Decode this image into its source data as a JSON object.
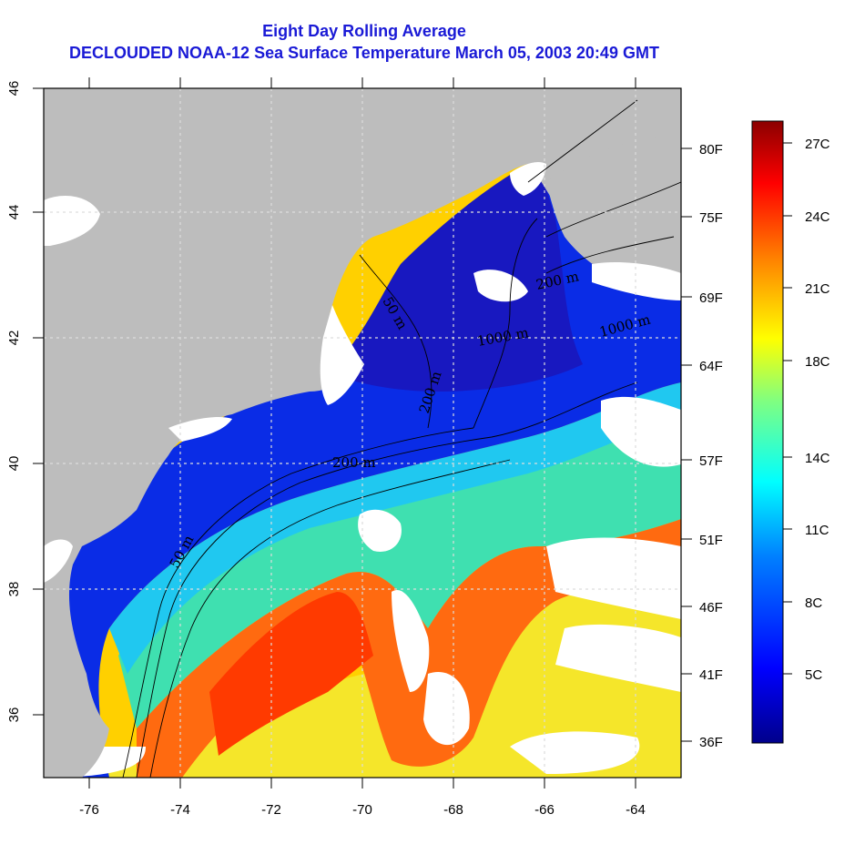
{
  "title": {
    "line1": "Eight Day Rolling Average",
    "line2": "DECLOUDED NOAA-12 Sea Surface Temperature March 05, 2003 20:49 GMT"
  },
  "map": {
    "lon_range": [
      -77,
      -63
    ],
    "lat_range": [
      35,
      46
    ],
    "lon_ticks": [
      "-76",
      "-74",
      "-72",
      "-70",
      "-68",
      "-66",
      "-64"
    ],
    "lat_ticks": [
      "36",
      "38",
      "40",
      "42",
      "44",
      "46"
    ],
    "fahrenheit_ticks": [
      "80F",
      "75F",
      "69F",
      "64F",
      "57F",
      "51F",
      "46F",
      "41F",
      "36F"
    ],
    "contour_labels": [
      "50 m",
      "200 m",
      "200 m",
      "1000 m",
      "1000 m",
      "200 m",
      "50 m"
    ],
    "colors": {
      "land": "#bdbdbd",
      "cloud": "#ffffff",
      "grid": "#dddddd"
    }
  },
  "colorbar": {
    "celsius_ticks": [
      "27C",
      "24C",
      "21C",
      "18C",
      "14C",
      "11C",
      "8C",
      "5C"
    ],
    "gradient": [
      "#00008b",
      "#0000ff",
      "#00bfff",
      "#00ffff",
      "#7fff7f",
      "#ffff00",
      "#ff7f00",
      "#ff0000",
      "#8b0000"
    ]
  }
}
